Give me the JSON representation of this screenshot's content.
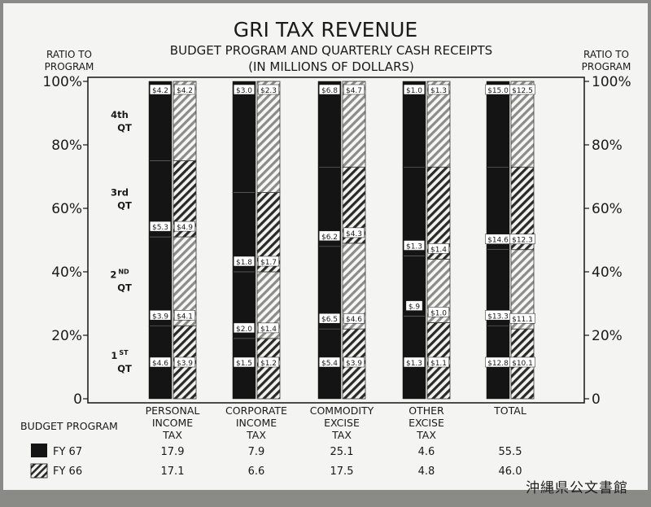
{
  "chart_data": {
    "type": "bar",
    "title": "GRI TAX REVENUE",
    "subtitle_line1": "BUDGET PROGRAM AND QUARTERLY CASH RECEIPTS",
    "subtitle_line2": "(IN MILLIONS OF DOLLARS)",
    "ylabel_left": [
      "RATIO TO",
      "PROGRAM"
    ],
    "ylabel_right": [
      "RATIO TO",
      "PROGRAM"
    ],
    "ylim": [
      0,
      100
    ],
    "yticks": [
      "0",
      "20%",
      "40%",
      "60%",
      "80%",
      "100%"
    ],
    "yticks_right": [
      "0",
      "20%",
      "40%",
      "60%",
      "80%",
      "100%"
    ],
    "quarters": [
      {
        "line1": "1",
        "sup": "ST",
        "line2": "QT"
      },
      {
        "line1": "2",
        "sup": "ND",
        "line2": "QT"
      },
      {
        "line1": "3rd",
        "sup": "",
        "line2": "QT"
      },
      {
        "line1": "4th",
        "sup": "",
        "line2": "QT"
      }
    ],
    "categories": [
      [
        "PERSONAL",
        "INCOME",
        "TAX"
      ],
      [
        "CORPORATE",
        "INCOME",
        "TAX"
      ],
      [
        "COMMODITY",
        "EXCISE",
        "TAX"
      ],
      [
        "OTHER",
        "EXCISE",
        "TAX"
      ],
      [
        "TOTAL"
      ]
    ],
    "series": [
      {
        "name": "FY 67",
        "budget": [
          "17.9",
          "7.9",
          "25.1",
          "4.6",
          "55.5"
        ],
        "quarter_labels": [
          [
            "$4.6",
            "$3.9",
            "$5.3",
            "$4.2"
          ],
          [
            "$1.5",
            "$2.0",
            "$1.8",
            "$3.0"
          ],
          [
            "$5.4",
            "$6.5",
            "$6.2",
            "$6.8"
          ],
          [
            "$1.3",
            "$.9",
            "$1.3",
            "$1.0"
          ],
          [
            "$12.8",
            "$13.3",
            "$14.6",
            "$15.0"
          ]
        ],
        "cumulative_pct": [
          [
            23,
            51,
            75,
            100
          ],
          [
            19,
            40,
            65,
            100
          ],
          [
            22,
            48,
            73,
            100
          ],
          [
            26,
            45,
            73,
            100
          ],
          [
            23,
            47,
            73,
            100
          ]
        ]
      },
      {
        "name": "FY 66",
        "budget": [
          "17.1",
          "6.6",
          "17.5",
          "4.8",
          "46.0"
        ],
        "quarter_labels": [
          [
            "$3.9",
            "$4.1",
            "$4.9",
            "$4.2"
          ],
          [
            "$1.2",
            "$1.4",
            "$1.7",
            "$2.3"
          ],
          [
            "$3.9",
            "$4.6",
            "$4.3",
            "$4.7"
          ],
          [
            "$1.1",
            "$1.0",
            "$1.4",
            "$1.3"
          ],
          [
            "$10.1",
            "$11.1",
            "$12.3",
            "$12.5"
          ]
        ],
        "cumulative_pct": [
          [
            23,
            51,
            75,
            100
          ],
          [
            19,
            40,
            65,
            100
          ],
          [
            22,
            49,
            73,
            100
          ],
          [
            24,
            44,
            73,
            100
          ],
          [
            22,
            47,
            73,
            100
          ]
        ]
      }
    ],
    "legend_title": "BUDGET PROGRAM",
    "grid": false
  },
  "watermark": "沖縄県公文書館",
  "colors": {
    "paper": "#f4f4f2",
    "ink": "#141414",
    "hatch_dark": "#2a2a2a",
    "hatch_light": "#8c8c8c"
  }
}
